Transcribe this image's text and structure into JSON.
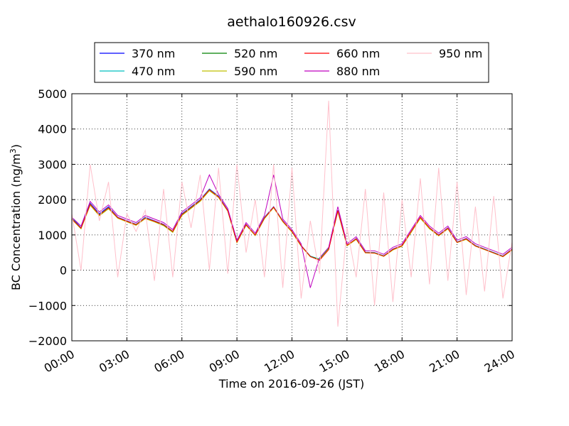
{
  "chart_data": {
    "type": "line",
    "title": "aethalo160926.csv",
    "xlabel": "Time on 2016-09-26 (JST)",
    "ylabel": "BC Concentration (ng/m",
    "ylabel_sup": "3",
    "ylabel_close": ")",
    "xlim": [
      "00:00",
      "24:00"
    ],
    "ylim": [
      -2000,
      5000
    ],
    "grid": true,
    "legend_placement": "top, above plot",
    "x_ticks": [
      "00:00",
      "03:00",
      "06:00",
      "09:00",
      "12:00",
      "15:00",
      "18:00",
      "21:00",
      "24:00"
    ],
    "y_ticks": [
      -2000,
      -1000,
      0,
      1000,
      2000,
      3000,
      4000,
      5000
    ],
    "y_tick_labels": [
      "−2000",
      "−1000",
      "0",
      "1000",
      "2000",
      "3000",
      "4000",
      "5000"
    ],
    "x": [
      "00:00",
      "00:30",
      "01:00",
      "01:30",
      "02:00",
      "02:30",
      "03:00",
      "03:30",
      "04:00",
      "04:30",
      "05:00",
      "05:30",
      "06:00",
      "06:30",
      "07:00",
      "07:30",
      "08:00",
      "08:30",
      "09:00",
      "09:30",
      "10:00",
      "10:30",
      "11:00",
      "11:30",
      "12:00",
      "12:30",
      "13:00",
      "13:30",
      "14:00",
      "14:30",
      "15:00",
      "15:30",
      "16:00",
      "16:30",
      "17:00",
      "17:30",
      "18:00",
      "18:30",
      "19:00",
      "19:30",
      "20:00",
      "20:30",
      "21:00",
      "21:30",
      "22:00",
      "22:30",
      "23:00",
      "23:30",
      "24:00"
    ],
    "series": [
      {
        "name": "370 nm",
        "color": "#0000ff",
        "values": [
          1500,
          1200,
          1900,
          1600,
          1800,
          1500,
          1400,
          1300,
          1500,
          1400,
          1300,
          1100,
          1600,
          1800,
          2000,
          2300,
          2100,
          1700,
          800,
          1300,
          1000,
          1500,
          1800,
          1400,
          1100,
          700,
          400,
          300,
          600,
          1700,
          700,
          900,
          500,
          500,
          400,
          600,
          700,
          1100,
          1500,
          1200,
          1000,
          1200,
          800,
          900,
          700,
          600,
          500,
          400,
          600
        ]
      },
      {
        "name": "470 nm",
        "color": "#00bfbf",
        "values": [
          1480,
          1190,
          1880,
          1580,
          1780,
          1490,
          1390,
          1300,
          1490,
          1390,
          1290,
          1100,
          1590,
          1790,
          1990,
          2290,
          2090,
          1690,
          800,
          1290,
          1000,
          1490,
          1790,
          1390,
          1100,
          700,
          400,
          320,
          620,
          1680,
          710,
          890,
          510,
          500,
          410,
          590,
          700,
          1090,
          1490,
          1190,
          990,
          1190,
          800,
          890,
          700,
          600,
          500,
          400,
          590
        ]
      },
      {
        "name": "520 nm",
        "color": "#008000",
        "values": [
          1460,
          1180,
          1860,
          1560,
          1760,
          1480,
          1380,
          1280,
          1470,
          1380,
          1270,
          1080,
          1570,
          1770,
          1970,
          2270,
          2070,
          1680,
          790,
          1280,
          990,
          1470,
          1780,
          1380,
          1090,
          690,
          390,
          310,
          610,
          1670,
          700,
          880,
          500,
          490,
          400,
          580,
          690,
          1080,
          1480,
          1180,
          980,
          1180,
          790,
          880,
          690,
          590,
          490,
          390,
          580
        ]
      },
      {
        "name": "590 nm",
        "color": "#bfbf00",
        "values": [
          1440,
          1170,
          1840,
          1540,
          1740,
          1470,
          1370,
          1270,
          1460,
          1370,
          1260,
          1070,
          1550,
          1750,
          1950,
          2250,
          2060,
          1670,
          780,
          1270,
          980,
          1460,
          1770,
          1370,
          1080,
          680,
          380,
          300,
          600,
          1660,
          690,
          870,
          490,
          480,
          390,
          570,
          680,
          1070,
          1470,
          1170,
          970,
          1170,
          780,
          870,
          680,
          580,
          480,
          380,
          570
        ]
      },
      {
        "name": "660 nm",
        "color": "#ff0000",
        "values": [
          1450,
          1190,
          1870,
          1570,
          1770,
          1490,
          1390,
          1290,
          1480,
          1390,
          1290,
          1100,
          1580,
          1780,
          1980,
          2280,
          2080,
          1690,
          800,
          1290,
          1000,
          1480,
          1790,
          1390,
          1100,
          700,
          390,
          280,
          580,
          1690,
          710,
          890,
          500,
          490,
          400,
          590,
          700,
          1100,
          1500,
          1200,
          990,
          1190,
          790,
          890,
          690,
          590,
          490,
          390,
          590
        ]
      },
      {
        "name": "880 nm",
        "color": "#bf00bf",
        "values": [
          1500,
          1250,
          1950,
          1650,
          1850,
          1550,
          1450,
          1350,
          1550,
          1450,
          1350,
          1150,
          1650,
          1850,
          2050,
          2700,
          2150,
          1750,
          850,
          1350,
          1050,
          1550,
          2700,
          1450,
          1150,
          750,
          -500,
          350,
          650,
          1800,
          750,
          950,
          550,
          550,
          450,
          650,
          750,
          1150,
          1550,
          1250,
          1050,
          1250,
          850,
          950,
          750,
          650,
          550,
          450,
          650
        ]
      },
      {
        "name": "950 nm",
        "color": "#ffc0cb",
        "values": [
          1600,
          0,
          3000,
          1400,
          2500,
          -200,
          1600,
          1100,
          1700,
          -300,
          2300,
          -200,
          2500,
          1200,
          2700,
          0,
          2900,
          -100,
          3000,
          500,
          2000,
          -200,
          3000,
          -500,
          2900,
          -800,
          1400,
          -100,
          4800,
          -1600,
          1200,
          -200,
          2300,
          -1000,
          2200,
          -900,
          2000,
          -200,
          2600,
          -400,
          2900,
          -300,
          2500,
          -700,
          1800,
          -600,
          2100,
          -800,
          800
        ]
      }
    ]
  }
}
